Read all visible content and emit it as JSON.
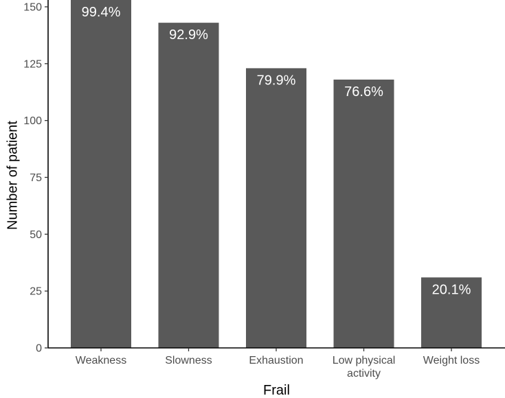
{
  "chart_data": {
    "type": "bar",
    "categories": [
      "Weakness",
      "Slowness",
      "Exhaustion",
      "Low physical activity",
      "Weight loss"
    ],
    "category_label_lines": [
      [
        "Weakness"
      ],
      [
        "Slowness"
      ],
      [
        "Exhaustion"
      ],
      [
        "Low physical",
        "activity"
      ],
      [
        "Weight loss"
      ]
    ],
    "values": [
      153,
      143,
      123,
      118,
      31
    ],
    "data_labels": [
      "99.4%",
      "92.9%",
      "79.9%",
      "76.6%",
      "20.1%"
    ],
    "title": "",
    "xlabel": "Frail",
    "ylabel": "Number of patient",
    "ylim": [
      0,
      153
    ],
    "yticks": [
      0,
      25,
      50,
      75,
      100,
      125,
      150
    ],
    "grid": false,
    "bar_color": "#595959",
    "bar_label_color": "#ffffff"
  }
}
